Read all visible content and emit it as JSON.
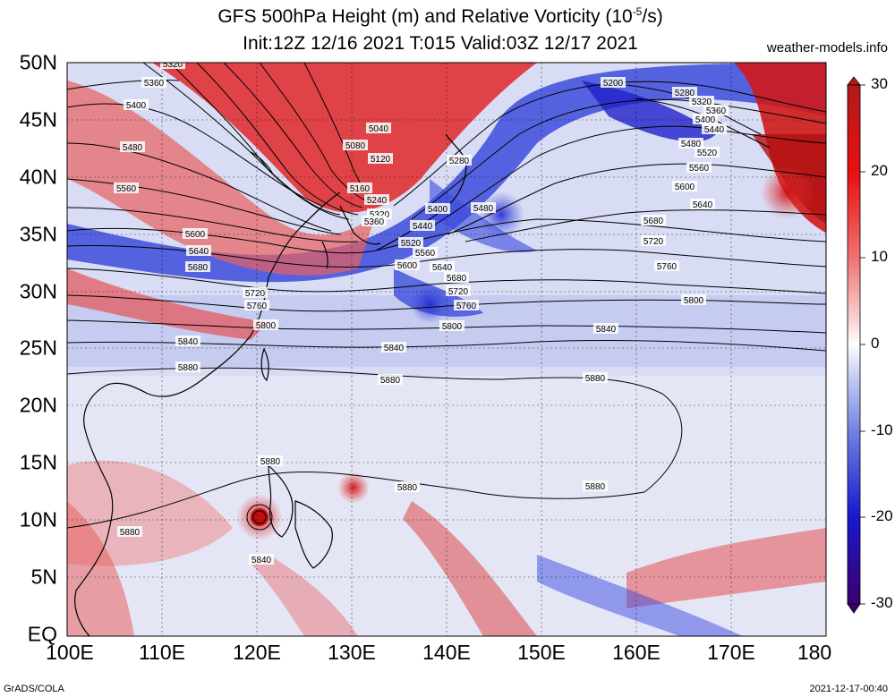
{
  "title": {
    "line1_pre": "GFS 500hPa Height (m) and Relative Vorticity (10",
    "line1_exp": "-5",
    "line1_post": "/s)",
    "line2": "Init:12Z 12/16 2021 T:015 Valid:03Z 12/17 2021"
  },
  "website": "weather-models.info",
  "footer": {
    "left": "GrADS/COLA",
    "right": "2021-12-17-00:40"
  },
  "axes": {
    "lat_labels": [
      "50N",
      "45N",
      "40N",
      "35N",
      "30N",
      "25N",
      "20N",
      "15N",
      "10N",
      "5N",
      "EQ"
    ],
    "lon_labels": [
      "100E",
      "110E",
      "120E",
      "130E",
      "140E",
      "150E",
      "160E",
      "170E",
      "180"
    ]
  },
  "colorbar": {
    "labels": [
      "30",
      "20",
      "10",
      "0",
      "-10",
      "-20",
      "-30"
    ],
    "colors": [
      "#3c006e",
      "#2020d0",
      "#3a5ae0",
      "#8a9ae8",
      "#c8d0f2",
      "#ffffff",
      "#f7c8c8",
      "#ee8888",
      "#e84040",
      "#d01818",
      "#a01010"
    ]
  },
  "contour_labels": [
    "5200",
    "5280",
    "5320",
    "5360",
    "5400",
    "5440",
    "5480",
    "5520",
    "5560",
    "5600",
    "5640",
    "5680",
    "5720",
    "5760",
    "5800",
    "5840",
    "5880",
    "5040",
    "5080",
    "5120",
    "5160",
    "5240"
  ],
  "map_colors": {
    "positive": "#e02828",
    "negative": "#2a3ad8",
    "background": "#dfe3f6"
  }
}
